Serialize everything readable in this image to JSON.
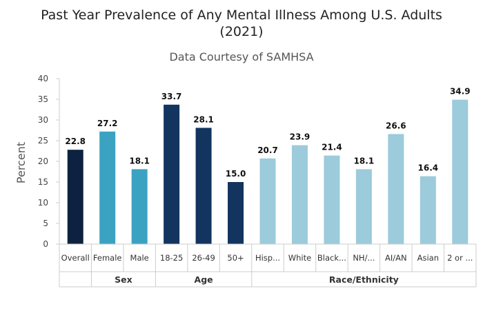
{
  "chart_data": {
    "type": "bar",
    "title_line1": "Past Year Prevalence of Any Mental Illness Among U.S. Adults",
    "title_line2": "(2021)",
    "subtitle": "Data Courtesy of SAMHSA",
    "ylabel": "Percent",
    "ylim": [
      0,
      40
    ],
    "yticks": [
      0,
      5,
      10,
      15,
      20,
      25,
      30,
      35,
      40
    ],
    "grid": false,
    "categories": [
      "Overall",
      "Female",
      "Male",
      "18-25",
      "26-49",
      "50+",
      "Hisp...",
      "White",
      "Black...",
      "NH/...",
      "AI/AN",
      "Asian",
      "2 or ..."
    ],
    "values": [
      22.8,
      27.2,
      18.1,
      33.7,
      28.1,
      15.0,
      20.7,
      23.9,
      21.4,
      18.1,
      26.6,
      16.4,
      34.9
    ],
    "value_labels": [
      "22.8",
      "27.2",
      "18.1",
      "33.7",
      "28.1",
      "15.0",
      "20.7",
      "23.9",
      "21.4",
      "18.1",
      "26.6",
      "16.4",
      "34.9"
    ],
    "bar_colors": [
      "#0d2240",
      "#3ba3c1",
      "#3ba3c1",
      "#12345f",
      "#12345f",
      "#12345f",
      "#9ccbdb",
      "#9ccbdb",
      "#9ccbdb",
      "#9ccbdb",
      "#9ccbdb",
      "#9ccbdb",
      "#9ccbdb"
    ],
    "groups": [
      {
        "label": "",
        "span": 1
      },
      {
        "label": "Sex",
        "span": 2
      },
      {
        "label": "Age",
        "span": 3
      },
      {
        "label": "Race/Ethnicity",
        "span": 7
      }
    ]
  }
}
